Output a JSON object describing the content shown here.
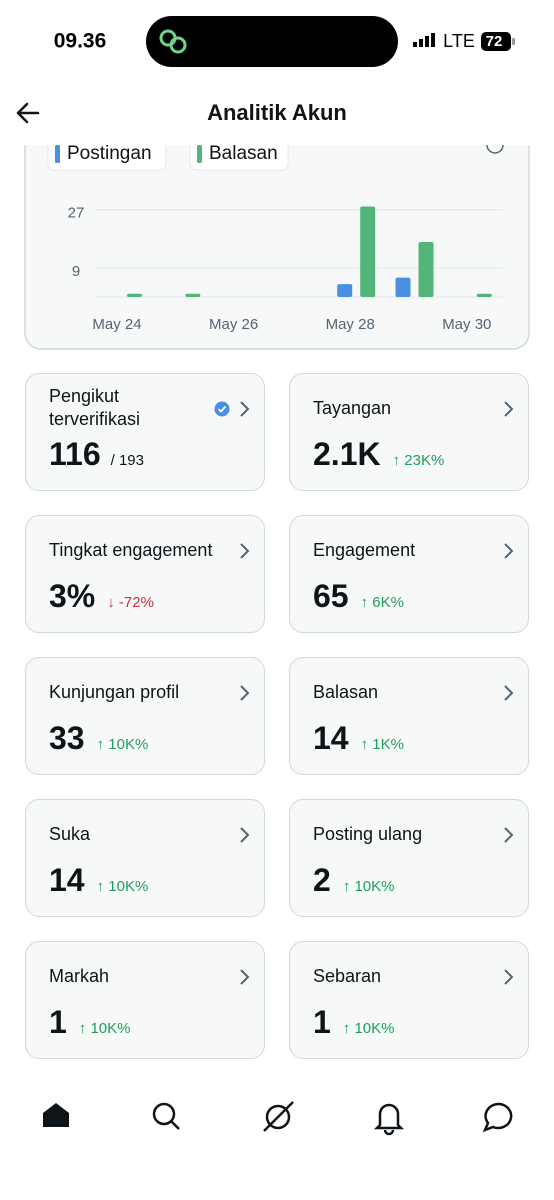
{
  "status_bar": {
    "time": "09.36",
    "network": "LTE",
    "battery": "72"
  },
  "header": {
    "title": "Analitik Akun"
  },
  "chart_data": {
    "type": "bar",
    "categories": [
      "May 24",
      null,
      "May 26",
      null,
      "May 28",
      null,
      "May 30"
    ],
    "series": [
      {
        "name": "Postingan",
        "color": "#4a90e2",
        "values": [
          0,
          0,
          0,
          0,
          4,
          6,
          0
        ]
      },
      {
        "name": "Balasan",
        "color": "#52b57a",
        "values": [
          1,
          1,
          0,
          0,
          28,
          17,
          1
        ]
      }
    ],
    "ylim": [
      0,
      30
    ],
    "yticks": [
      9,
      27
    ],
    "grid": true
  },
  "cards": [
    {
      "label": "Pengikut terverifikasi",
      "value": "116",
      "total": "/ 193",
      "verified": true
    },
    {
      "label": "Tayangan",
      "value": "2.1K",
      "change": "↑ 23K%",
      "color": "#1f9d5f"
    },
    {
      "label": "Tingkat engagement",
      "value": "3%",
      "change": "↓ -72%",
      "color": "#d0313c"
    },
    {
      "label": "Engagement",
      "value": "65",
      "change": "↑ 6K%",
      "color": "#1f9d5f"
    },
    {
      "label": "Kunjungan profil",
      "value": "33",
      "change": "↑ 10K%",
      "color": "#1f9d5f"
    },
    {
      "label": "Balasan",
      "value": "14",
      "change": "↑ 1K%",
      "color": "#1f9d5f"
    },
    {
      "label": "Suka",
      "value": "14",
      "change": "↑ 10K%",
      "color": "#1f9d5f"
    },
    {
      "label": "Posting ulang",
      "value": "2",
      "change": "↑ 10K%",
      "color": "#1f9d5f"
    },
    {
      "label": "Markah",
      "value": "1",
      "change": "↑ 10K%",
      "color": "#1f9d5f"
    },
    {
      "label": "Sebaran",
      "value": "1",
      "change": "↑ 10K%",
      "color": "#1f9d5f"
    }
  ]
}
